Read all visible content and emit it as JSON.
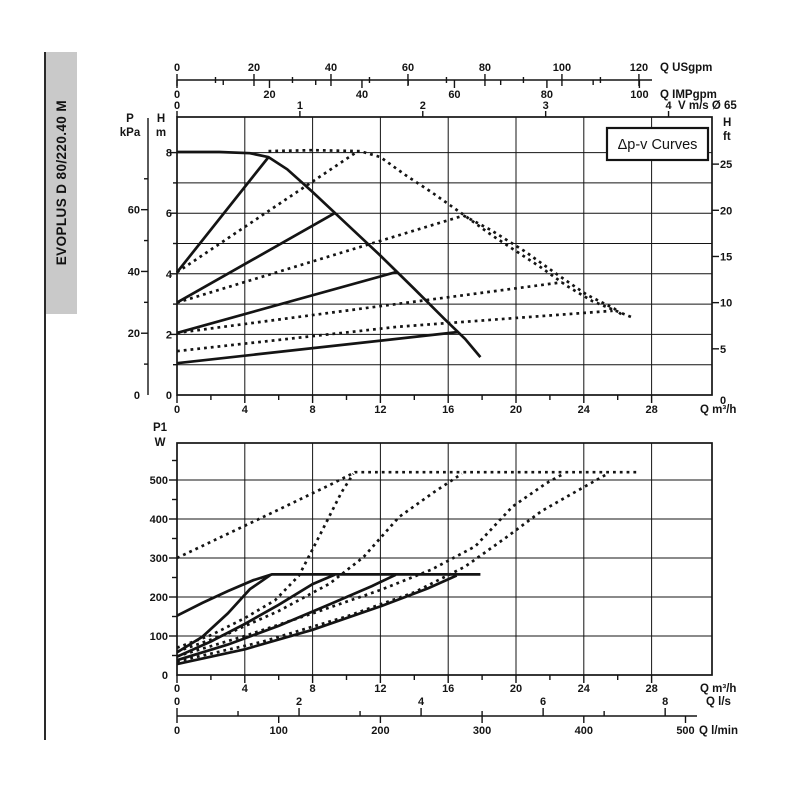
{
  "page": {
    "sidebar_label": "EVOPLUS D 80/220.40 M"
  },
  "chart_data": [
    {
      "type": "line",
      "id": "head-flow-chart",
      "annotation_box": "Δp-v Curves",
      "grid": true,
      "legend": "none",
      "axes": {
        "x_bottom": {
          "label": "Q m³/h",
          "min": 0,
          "max": 31.6,
          "major_ticks": [
            0,
            4,
            8,
            12,
            16,
            20,
            24,
            28
          ],
          "minor_step": 2,
          "grid_step": 4
        },
        "x_top": [
          {
            "label": "Q USgpm",
            "ticks": [
              0,
              20,
              40,
              60,
              80,
              100,
              120
            ],
            "minor_step": 10,
            "to_m3h": 0.2271
          },
          {
            "label": "Q IMPgpm",
            "ticks": [
              0,
              20,
              40,
              60,
              80,
              100
            ],
            "minor_step": 10,
            "to_m3h": 0.2728
          },
          {
            "label": "V m/s Ø 65",
            "ticks": [
              0,
              1,
              2,
              3,
              4
            ],
            "to_m3h": 7.25
          }
        ],
        "y_left_inner": {
          "label": "H m",
          "min": 0,
          "max": 9.17,
          "major_ticks": [
            0,
            2,
            4,
            6,
            8
          ],
          "tick_step": 1,
          "grid_step": 1
        },
        "y_left_outer": {
          "label": "P kPa",
          "ticks": [
            0,
            20,
            40,
            60
          ],
          "minor_step": 10,
          "to_m": 0.10194
        },
        "y_right": {
          "label": "H ft",
          "ticks": [
            0,
            5,
            10,
            15,
            20,
            25
          ],
          "to_m": 0.3048
        }
      },
      "series": [
        {
          "name": "max-speed-single",
          "style": "solid",
          "points": [
            [
              0,
              8.02
            ],
            [
              2.5,
              8.02
            ],
            [
              4.3,
              7.98
            ],
            [
              5.4,
              7.85
            ],
            [
              6.5,
              7.45
            ],
            [
              8,
              6.7
            ],
            [
              10,
              5.65
            ],
            [
              12,
              4.6
            ],
            [
              14,
              3.5
            ],
            [
              15.8,
              2.5
            ],
            [
              17,
              1.85
            ],
            [
              17.9,
              1.25
            ]
          ]
        },
        {
          "name": "dpv-8m-single",
          "style": "solid",
          "points": [
            [
              0,
              4.05
            ],
            [
              5.4,
              7.85
            ]
          ]
        },
        {
          "name": "dpv-6m-single",
          "style": "solid",
          "points": [
            [
              0,
              3.05
            ],
            [
              9.3,
              6.0
            ]
          ]
        },
        {
          "name": "dpv-4m-single",
          "style": "solid",
          "points": [
            [
              0,
              2.05
            ],
            [
              13,
              4.07
            ]
          ]
        },
        {
          "name": "dpv-2m-single",
          "style": "solid",
          "points": [
            [
              0,
              1.05
            ],
            [
              16.6,
              2.08
            ]
          ]
        },
        {
          "name": "max-speed-parallel",
          "style": "dashed",
          "points": [
            [
              5.4,
              8.05
            ],
            [
              8,
              8.08
            ],
            [
              10.8,
              8.05
            ],
            [
              12,
              7.85
            ],
            [
              13.5,
              7.25
            ],
            [
              15,
              6.7
            ],
            [
              16.9,
              5.95
            ],
            [
              18.5,
              5.3
            ],
            [
              20,
              4.75
            ],
            [
              21.5,
              4.2
            ],
            [
              23,
              3.6
            ],
            [
              24.5,
              3.1
            ],
            [
              25.8,
              2.8
            ],
            [
              26.9,
              2.55
            ]
          ]
        },
        {
          "name": "dpv-8m-parallel",
          "style": "dashed",
          "points": [
            [
              0,
              4.05
            ],
            [
              10.6,
              8.02
            ]
          ]
        },
        {
          "name": "dpv-6m-parallel",
          "style": "dashed",
          "points": [
            [
              0,
              3.05
            ],
            [
              16.9,
              5.92
            ]
          ]
        },
        {
          "name": "dpv-4m-parallel",
          "style": "dashed",
          "points": [
            [
              0,
              2.05
            ],
            [
              22.7,
              3.72
            ]
          ]
        },
        {
          "name": "dpv-2m-parallel",
          "style": "dashed",
          "points": [
            [
              0,
              1.45
            ],
            [
              13,
              2.25
            ],
            [
              25.7,
              2.78
            ]
          ]
        },
        {
          "name": "parallel-6m-tail",
          "style": "dashed",
          "points": [
            [
              16.9,
              5.92
            ],
            [
              18.5,
              5.45
            ],
            [
              20.5,
              4.75
            ],
            [
              22.5,
              3.95
            ],
            [
              24.2,
              3.3
            ],
            [
              25.8,
              2.85
            ],
            [
              26.3,
              2.62
            ]
          ]
        }
      ]
    },
    {
      "type": "line",
      "id": "power-flow-chart",
      "grid": true,
      "legend": "none",
      "axes": {
        "x_bottom": {
          "label": "Q m³/h",
          "min": 0,
          "max": 31.6,
          "major_ticks": [
            0,
            4,
            8,
            12,
            16,
            20,
            24,
            28
          ],
          "minor_step": 2,
          "grid_step": 4
        },
        "x_secondary": [
          {
            "label": "Q l/s",
            "ticks": [
              0,
              2,
              4,
              6,
              8
            ],
            "minor_step": 1,
            "to_m3h": 3.6
          },
          {
            "label": "Q l/min",
            "ticks": [
              0,
              100,
              200,
              300,
              400,
              500
            ],
            "to_m3h": 0.06
          }
        ],
        "y_left": {
          "label": "P1 W",
          "min": 0,
          "max": 595,
          "major_ticks": [
            0,
            100,
            200,
            300,
            400,
            500
          ],
          "minor_step": 50,
          "grid_step": 100
        }
      },
      "series": [
        {
          "name": "power-max-single",
          "style": "solid",
          "points": [
            [
              0,
              152
            ],
            [
              1.5,
              185
            ],
            [
              3,
              215
            ],
            [
              4.5,
              243
            ],
            [
              5.6,
              258
            ],
            [
              17.9,
              258
            ]
          ]
        },
        {
          "name": "power-dpv-8m-single",
          "style": "solid",
          "points": [
            [
              0,
              58
            ],
            [
              1.5,
              98
            ],
            [
              3,
              158
            ],
            [
              4.3,
              220
            ],
            [
              5.5,
              256
            ]
          ]
        },
        {
          "name": "power-dpv-6m-single",
          "style": "solid",
          "points": [
            [
              0,
              47
            ],
            [
              2,
              86
            ],
            [
              4,
              131
            ],
            [
              6,
              180
            ],
            [
              8,
              233
            ],
            [
              9.3,
              257
            ]
          ]
        },
        {
          "name": "power-dpv-4m-single",
          "style": "solid",
          "points": [
            [
              0,
              38
            ],
            [
              3,
              78
            ],
            [
              6,
              126
            ],
            [
              9,
              181
            ],
            [
              11.5,
              228
            ],
            [
              12.9,
              257
            ]
          ]
        },
        {
          "name": "power-dpv-2m-single",
          "style": "solid",
          "points": [
            [
              0,
              28
            ],
            [
              4,
              66
            ],
            [
              8,
              116
            ],
            [
              12,
              176
            ],
            [
              14.8,
              222
            ],
            [
              16.5,
              255
            ]
          ]
        },
        {
          "name": "power-max-parallel",
          "style": "dashed",
          "points": [
            [
              0,
              300
            ],
            [
              3,
              362
            ],
            [
              6,
              424
            ],
            [
              9,
              487
            ],
            [
              10.5,
              520
            ],
            [
              27.1,
              520
            ]
          ]
        },
        {
          "name": "power-dpv-8m-parallel",
          "style": "dashed",
          "points": [
            [
              0,
              70
            ],
            [
              2,
              102
            ],
            [
              4,
              146
            ],
            [
              5.8,
              192
            ],
            [
              7.2,
              255
            ],
            [
              8.3,
              348
            ],
            [
              9.7,
              468
            ],
            [
              10.4,
              516
            ]
          ]
        },
        {
          "name": "power-dpv-6m-parallel",
          "style": "dashed",
          "points": [
            [
              0,
              60
            ],
            [
              3,
              106
            ],
            [
              6,
              164
            ],
            [
              9,
              234
            ],
            [
              11,
              302
            ],
            [
              13.1,
              405
            ],
            [
              15.2,
              470
            ],
            [
              16.8,
              516
            ]
          ]
        },
        {
          "name": "power-dpv-4m-parallel",
          "style": "dashed",
          "points": [
            [
              0,
              48
            ],
            [
              4,
              100
            ],
            [
              8,
              158
            ],
            [
              12,
              218
            ],
            [
              15,
              270
            ],
            [
              17.6,
              330
            ],
            [
              19.8,
              432
            ],
            [
              21.8,
              492
            ],
            [
              22.8,
              516
            ]
          ]
        },
        {
          "name": "power-dpv-2m-parallel",
          "style": "dashed",
          "points": [
            [
              0,
              35
            ],
            [
              5,
              85
            ],
            [
              10,
              150
            ],
            [
              14,
              212
            ],
            [
              17,
              278
            ],
            [
              19.4,
              352
            ],
            [
              21.5,
              420
            ],
            [
              23.2,
              462
            ],
            [
              25.4,
              516
            ]
          ]
        }
      ]
    }
  ]
}
